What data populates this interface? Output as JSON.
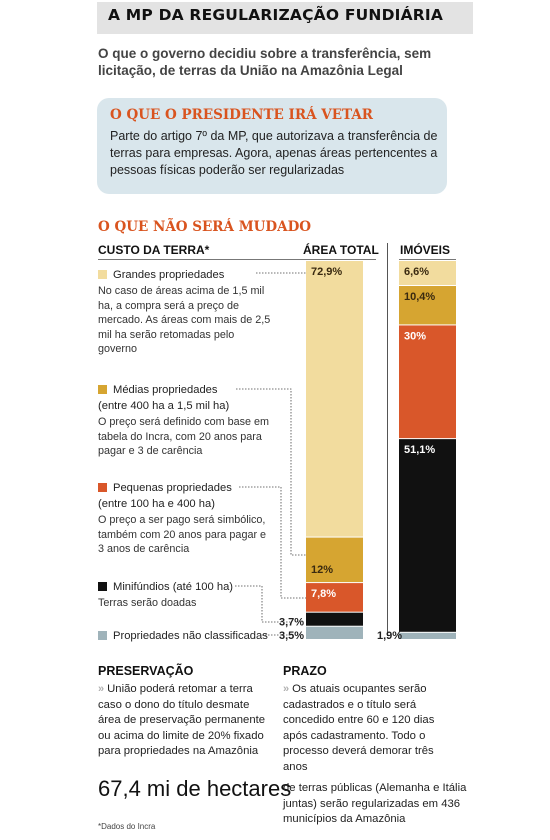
{
  "header": {
    "title": "A MP DA REGULARIZAÇÃO FUNDIÁRIA",
    "subtitle": "O que o governo decidiu sobre a transferência, sem licitação, de terras da União na Amazônia Legal"
  },
  "veto": {
    "title": "O QUE O PRESIDENTE IRÁ VETAR",
    "text": "Parte do artigo 7º da MP, que autorizava a transferência de terras para empresas. Agora, apenas áreas pertencentes a pessoas físicas poderão ser regularizadas"
  },
  "unchanged": {
    "title": "O QUE NÃO SERÁ MUDADO",
    "col_cost": "CUSTO DA TERRA*",
    "col_area": "ÁREA TOTAL",
    "col_props": "IMÓVEIS"
  },
  "categories": [
    {
      "name": "Grandes propriedades",
      "desc": "No caso de  áreas acima de 1,5 mil ha, a compra será a preço de mercado. As áreas com mais de 2,5 mil ha serão retomadas pelo governo",
      "color": "#f2dc9e"
    },
    {
      "name": "Médias propriedades",
      "name2": "(entre 400 ha a 1,5 mil ha)",
      "desc": "O preço será definido com base em tabela do Incra, com 20 anos para pagar e 3 de carência",
      "color": "#d6a531"
    },
    {
      "name": "Pequenas propriedades",
      "name2": "(entre 100 ha e 400 ha)",
      "desc": "O preço a ser pago será simbólico, também com 20 anos para pagar e 3 anos de carência",
      "color": "#d9572a"
    },
    {
      "name": "Minifúndios (até 100 ha)",
      "desc": "Terras serão doadas",
      "color": "#111111"
    },
    {
      "name": "Propriedades não classificadas",
      "color": "#9fb3ba"
    }
  ],
  "chart_data": {
    "type": "bar",
    "stacked": true,
    "categories": [
      "ÁREA TOTAL",
      "IMÓVEIS"
    ],
    "series": [
      {
        "name": "Grandes propriedades",
        "values": [
          72.9,
          6.6
        ],
        "labels": [
          "72,9%",
          "6,6%"
        ],
        "color": "#f2dc9e"
      },
      {
        "name": "Médias propriedades",
        "values": [
          12,
          10.4
        ],
        "labels": [
          "12%",
          "10,4%"
        ],
        "color": "#d6a531"
      },
      {
        "name": "Pequenas propriedades",
        "values": [
          7.8,
          30
        ],
        "labels": [
          "7,8%",
          "30%"
        ],
        "color": "#d9572a"
      },
      {
        "name": "Minifúndios (até 100 ha)",
        "values": [
          3.7,
          51.1
        ],
        "labels": [
          "3,7%",
          "51,1%"
        ],
        "color": "#111111"
      },
      {
        "name": "Propriedades não classificadas",
        "values": [
          3.5,
          1.9
        ],
        "labels": [
          "3,5%",
          "1,9%"
        ],
        "color": "#9fb3ba"
      }
    ],
    "unit": "%"
  },
  "preservation": {
    "title": "PRESERVAÇÃO",
    "arrow": "»",
    "text": "União poderá retomar a terra caso o dono do título desmate área de preservação permanente ou acima do limite de 20% fixado para propriedades na Amazônia"
  },
  "deadline": {
    "title": "PRAZO",
    "arrow": "»",
    "text": "Os atuais ocupantes serão cadastrados e o título será concedido entre 60 e 120 dias após cadastramento. Todo o processo deverá demorar três anos"
  },
  "highlight": {
    "number": "67,4 mi de hectares",
    "text": "de terras públicas (Alemanha e Itália juntas) serão regularizadas em 436 municípios da Amazônia"
  },
  "source": "*Dados do Incra"
}
